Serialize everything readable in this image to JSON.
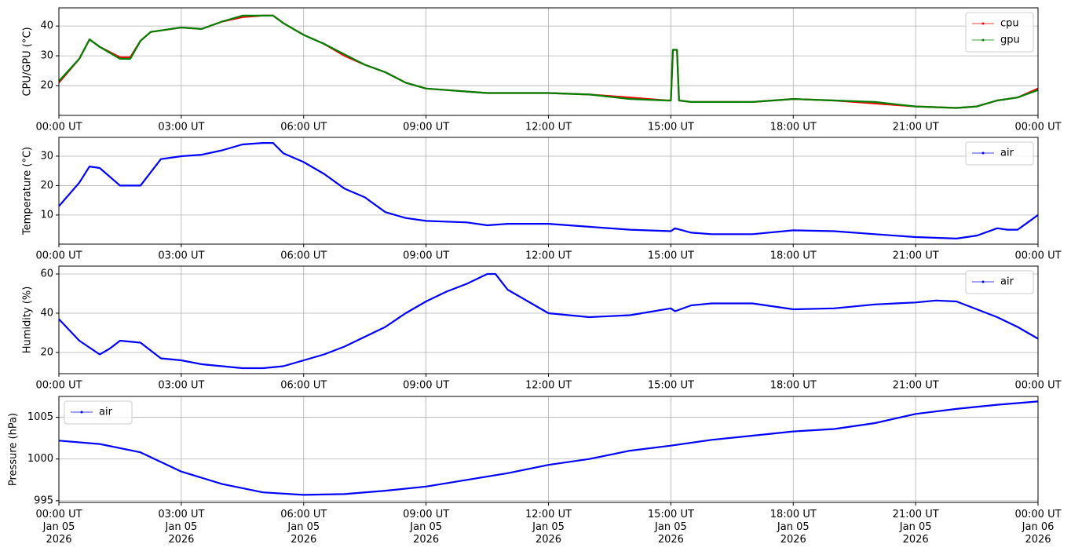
{
  "chart_data": [
    {
      "type": "line",
      "ylabel": "CPU/GPU (°C)",
      "legend": "upper right",
      "grid": true,
      "x": [
        0,
        0.5,
        0.75,
        1,
        1.5,
        1.75,
        2,
        2.25,
        2.5,
        3,
        3.5,
        4,
        4.5,
        5,
        5.25,
        5.5,
        6,
        6.5,
        7,
        7.5,
        8,
        8.5,
        9,
        9.5,
        10,
        10.5,
        11,
        12,
        13,
        14,
        14.9,
        15,
        15.05,
        15.15,
        15.2,
        15.5,
        16,
        17,
        18,
        19,
        20,
        21,
        22,
        22.5,
        23,
        23.5,
        24
      ],
      "series": [
        {
          "name": "cpu",
          "color": "#ff0000",
          "values": [
            21,
            29,
            35.5,
            33,
            29.5,
            29.5,
            35,
            38,
            38.5,
            39.5,
            39,
            41.5,
            43,
            43.5,
            43.5,
            41,
            37,
            34,
            30,
            27,
            24.5,
            21,
            19,
            18.5,
            18,
            17.5,
            17.5,
            17.5,
            17,
            16,
            15,
            15,
            32,
            32,
            15,
            14.5,
            14.5,
            14.5,
            15.5,
            15,
            14,
            13,
            12.5,
            13,
            15,
            16,
            19
          ]
        },
        {
          "name": "gpu",
          "color": "#008000",
          "values": [
            21.5,
            29,
            35.5,
            33,
            29,
            29,
            35,
            38,
            38.5,
            39.5,
            39,
            41.5,
            43.5,
            43.5,
            43.5,
            41,
            37,
            34,
            30.5,
            27,
            24.5,
            21,
            19,
            18.5,
            18,
            17.5,
            17.5,
            17.5,
            17,
            15.5,
            15,
            15,
            32,
            32,
            15,
            14.5,
            14.5,
            14.5,
            15.5,
            15,
            14.5,
            13,
            12.5,
            13,
            15,
            16,
            18.5
          ]
        }
      ],
      "xlim": [
        0,
        24
      ],
      "xticks": [
        {
          "value": 0,
          "label": "00:00 UT"
        },
        {
          "value": 3,
          "label": "03:00 UT"
        },
        {
          "value": 6,
          "label": "06:00 UT"
        },
        {
          "value": 9,
          "label": "09:00 UT"
        },
        {
          "value": 12,
          "label": "12:00 UT"
        },
        {
          "value": 15,
          "label": "15:00 UT"
        },
        {
          "value": 18,
          "label": "18:00 UT"
        },
        {
          "value": 21,
          "label": "21:00 UT"
        },
        {
          "value": 24,
          "label": "00:00 UT"
        }
      ],
      "ylim": [
        10,
        46.1
      ],
      "yticks": [
        20,
        30,
        40
      ]
    },
    {
      "type": "line",
      "ylabel": "Temperature (°C)",
      "legend": "upper right",
      "grid": true,
      "x": [
        0,
        0.5,
        0.75,
        1,
        1.5,
        2,
        2.5,
        3,
        3.5,
        4,
        4.5,
        5,
        5.25,
        5.5,
        6,
        6.5,
        7,
        7.5,
        8,
        8.5,
        9,
        10,
        10.5,
        11,
        12,
        13,
        14,
        15,
        15.1,
        15.5,
        16,
        17,
        18,
        19,
        20,
        21,
        22,
        22.5,
        23,
        23.25,
        23.5,
        23.75,
        24
      ],
      "series": [
        {
          "name": "air",
          "color": "#0000ff",
          "values": [
            13,
            21,
            26.5,
            26,
            20,
            20,
            29,
            30,
            30.5,
            32,
            34,
            34.5,
            34.5,
            31,
            28,
            24,
            19,
            16,
            11,
            9,
            8,
            7.5,
            6.5,
            7,
            7,
            6,
            5,
            4.5,
            5.5,
            4,
            3.5,
            3.5,
            4.8,
            4.5,
            3.5,
            2.5,
            2,
            3,
            5.5,
            5,
            5,
            7.5,
            10
          ]
        }
      ],
      "xlim": [
        0,
        24
      ],
      "xticks": [
        {
          "value": 0,
          "label": "00:00 UT"
        },
        {
          "value": 3,
          "label": "03:00 UT"
        },
        {
          "value": 6,
          "label": "06:00 UT"
        },
        {
          "value": 9,
          "label": "09:00 UT"
        },
        {
          "value": 12,
          "label": "12:00 UT"
        },
        {
          "value": 15,
          "label": "15:00 UT"
        },
        {
          "value": 18,
          "label": "18:00 UT"
        },
        {
          "value": 21,
          "label": "21:00 UT"
        },
        {
          "value": 24,
          "label": "00:00 UT"
        }
      ],
      "ylim": [
        0.1,
        36.4
      ],
      "yticks": [
        10,
        20,
        30
      ]
    },
    {
      "type": "line",
      "ylabel": "Humidity (%)",
      "legend": "upper right",
      "grid": true,
      "x": [
        0,
        0.5,
        1,
        1.25,
        1.5,
        2,
        2.5,
        3,
        3.5,
        4,
        4.5,
        5,
        5.5,
        6,
        6.5,
        7,
        7.5,
        8,
        8.5,
        9,
        9.5,
        10,
        10.5,
        10.7,
        11,
        11.5,
        12,
        13,
        14,
        15,
        15.1,
        15.5,
        16,
        17,
        18,
        19,
        20,
        21,
        21.5,
        22,
        22.5,
        23,
        23.5,
        24
      ],
      "series": [
        {
          "name": "air",
          "color": "#0000ff",
          "values": [
            37,
            26,
            19,
            22,
            26,
            25,
            17,
            16,
            14,
            13,
            12,
            12,
            13,
            16,
            19,
            23,
            28,
            33,
            40,
            46,
            51,
            55,
            60,
            60,
            52,
            46,
            40,
            38,
            39,
            42.5,
            41,
            44,
            45,
            45,
            42,
            42.5,
            44.5,
            45.5,
            46.5,
            46,
            42,
            38,
            33,
            27
          ]
        }
      ],
      "xlim": [
        0,
        24
      ],
      "xticks": [
        {
          "value": 0,
          "label": "00:00 UT"
        },
        {
          "value": 3,
          "label": "03:00 UT"
        },
        {
          "value": 6,
          "label": "06:00 UT"
        },
        {
          "value": 9,
          "label": "09:00 UT"
        },
        {
          "value": 12,
          "label": "12:00 UT"
        },
        {
          "value": 15,
          "label": "15:00 UT"
        },
        {
          "value": 18,
          "label": "18:00 UT"
        },
        {
          "value": 21,
          "label": "21:00 UT"
        },
        {
          "value": 24,
          "label": "00:00 UT"
        }
      ],
      "ylim": [
        9.2,
        64
      ],
      "yticks": [
        20,
        40,
        60
      ]
    },
    {
      "type": "line",
      "ylabel": "Pressure (hPa)",
      "legend": "upper left",
      "grid": true,
      "x": [
        0,
        1,
        2,
        3,
        4,
        5,
        6,
        7,
        8,
        9,
        10,
        11,
        12,
        13,
        14,
        15,
        16,
        17,
        18,
        19,
        20,
        21,
        22,
        23,
        24
      ],
      "series": [
        {
          "name": "air",
          "color": "#0000ff",
          "values": [
            1002.2,
            1001.8,
            1000.8,
            998.5,
            997,
            996,
            995.7,
            995.8,
            996.2,
            996.7,
            997.5,
            998.3,
            999.3,
            1000,
            1001,
            1001.6,
            1002.3,
            1002.8,
            1003.3,
            1003.6,
            1004.3,
            1005.4,
            1006,
            1006.5,
            1006.9
          ]
        }
      ],
      "xlim": [
        0,
        24
      ],
      "xticks": [
        {
          "value": 0,
          "label": "00:00 UT\nJan 05\n2026"
        },
        {
          "value": 3,
          "label": "03:00 UT\nJan 05\n2026"
        },
        {
          "value": 6,
          "label": "06:00 UT\nJan 05\n2026"
        },
        {
          "value": 9,
          "label": "09:00 UT\nJan 05\n2026"
        },
        {
          "value": 12,
          "label": "12:00 UT\nJan 05\n2026"
        },
        {
          "value": 15,
          "label": "15:00 UT\nJan 05\n2026"
        },
        {
          "value": 18,
          "label": "18:00 UT\nJan 05\n2026"
        },
        {
          "value": 21,
          "label": "21:00 UT\nJan 05\n2026"
        },
        {
          "value": 24,
          "label": "00:00 UT\nJan 06\n2026"
        }
      ],
      "ylim": [
        994.8,
        1007.5
      ],
      "yticks": [
        995,
        1000,
        1005
      ]
    }
  ]
}
